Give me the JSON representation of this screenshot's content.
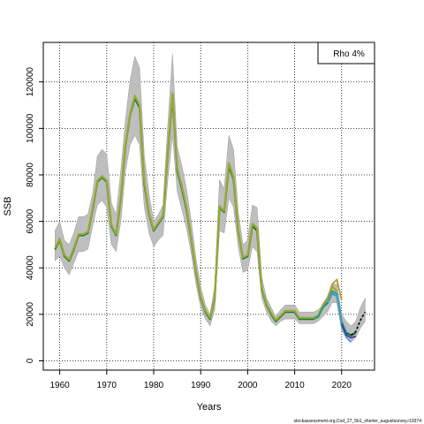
{
  "chart_data": {
    "type": "line",
    "xlabel": "Years",
    "ylabel": "SSB",
    "xlim": [
      1956.5,
      2027
    ],
    "ylim": [
      -4000,
      137000
    ],
    "x_ticks": [
      1960,
      1970,
      1980,
      1990,
      2000,
      2010,
      2020
    ],
    "y_ticks": [
      0,
      20000,
      40000,
      60000,
      80000,
      100000,
      120000
    ],
    "grid": "dotted",
    "legend": {
      "placement": "top-right",
      "text": "Rho 4%"
    },
    "footnote": "stockassessment.org,Cod_27_5b1_shorter_augustsurvey,r19374",
    "colors": {
      "band": "#bebebe",
      "base": "#0b7a3a",
      "retro1": "#9aa832",
      "retro2": "#b89a2e",
      "retro3": "#20a08a",
      "retro4": "#4aa0d0",
      "retro5": "#3a3aa0",
      "forecast": "#111111"
    },
    "confidence_band": {
      "x": [
        1959,
        1960,
        1961,
        1962,
        1963,
        1964,
        1965,
        1966,
        1967,
        1968,
        1969,
        1970,
        1971,
        1972,
        1973,
        1974,
        1975,
        1976,
        1977,
        1978,
        1979,
        1980,
        1981,
        1982,
        1983,
        1984,
        1985,
        1986,
        1987,
        1988,
        1989,
        1990,
        1991,
        1992,
        1993,
        1994,
        1995,
        1996,
        1997,
        1998,
        1999,
        2000,
        2001,
        2002,
        2003,
        2004,
        2005,
        2006,
        2007,
        2008,
        2009,
        2010,
        2011,
        2012,
        2013,
        2014,
        2015,
        2016,
        2017,
        2018,
        2019,
        2020,
        2021,
        2022,
        2023,
        2024,
        2025
      ],
      "upper": [
        56000,
        60000,
        52000,
        50000,
        55000,
        62000,
        62000,
        63000,
        72000,
        88000,
        91000,
        89000,
        68000,
        63000,
        82000,
        104000,
        121000,
        131000,
        126000,
        88000,
        72000,
        60000,
        63000,
        67000,
        102000,
        132000,
        92000,
        84000,
        74000,
        60000,
        44000,
        32000,
        24000,
        20000,
        32000,
        78000,
        74000,
        97000,
        91000,
        64000,
        50000,
        52000,
        67000,
        66000,
        36000,
        27000,
        23000,
        19000,
        22000,
        24000,
        24000,
        24000,
        21000,
        21000,
        21000,
        21000,
        22000,
        24000,
        27000,
        33000,
        33000,
        20000,
        17000,
        15000,
        17000,
        23000,
        27000
      ],
      "lower": [
        43000,
        45000,
        40000,
        37000,
        42000,
        47000,
        47000,
        48000,
        58000,
        67000,
        69000,
        66000,
        50000,
        47000,
        60000,
        82000,
        93000,
        97000,
        93000,
        66000,
        55000,
        49000,
        52000,
        54000,
        78000,
        97000,
        73000,
        65000,
        57000,
        46000,
        33000,
        23000,
        18000,
        15000,
        22000,
        56000,
        55000,
        70000,
        66000,
        49000,
        38000,
        39000,
        49000,
        47000,
        27000,
        21000,
        17000,
        15000,
        17000,
        18000,
        18000,
        18000,
        16000,
        16000,
        16000,
        16000,
        17000,
        19000,
        21000,
        25000,
        25000,
        13000,
        10000,
        8000,
        10000,
        14000,
        17000
      ]
    },
    "series": [
      {
        "color": "#0b7a3a",
        "x": [
          1959,
          1960,
          1961,
          1962,
          1963,
          1964,
          1965,
          1966,
          1967,
          1968,
          1969,
          1970,
          1971,
          1972,
          1973,
          1974,
          1975,
          1976,
          1977,
          1978,
          1979,
          1980,
          1981,
          1982,
          1983,
          1984,
          1985,
          1986,
          1987,
          1988,
          1989,
          1990,
          1991,
          1992,
          1993,
          1994,
          1995,
          1996,
          1997,
          1998,
          1999,
          2000,
          2001,
          2002,
          2003,
          2004,
          2005,
          2006,
          2007,
          2008,
          2009,
          2010,
          2011,
          2012,
          2013,
          2014,
          2015,
          2016,
          2017,
          2018,
          2019,
          2020,
          2021,
          2022,
          2023
        ],
        "y": [
          48000,
          52000,
          45000,
          43000,
          48000,
          54000,
          54000,
          55000,
          65000,
          77000,
          79000,
          77000,
          58000,
          54000,
          70000,
          93000,
          106000,
          113000,
          109000,
          76000,
          63000,
          56000,
          59000,
          62000,
          90000,
          114000,
          82000,
          74000,
          65000,
          52000,
          38000,
          27000,
          21000,
          18000,
          27000,
          66000,
          64000,
          84000,
          78000,
          56000,
          44000,
          45000,
          58000,
          56000,
          31000,
          24000,
          20000,
          17000,
          19000,
          21000,
          21000,
          21000,
          18000,
          18000,
          18000,
          18000,
          19000,
          23000,
          25000,
          29000,
          28000,
          16000,
          12000,
          11000,
          12000
        ]
      },
      {
        "color": "#9aa832",
        "x": [
          1959,
          1960,
          1961,
          1962,
          1963,
          1964,
          1965,
          1966,
          1967,
          1968,
          1969,
          1970,
          1971,
          1972,
          1973,
          1974,
          1975,
          1976,
          1977,
          1978,
          1979,
          1980,
          1981,
          1982,
          1983,
          1984,
          1985,
          1986,
          1987,
          1988,
          1989,
          1990,
          1991,
          1992,
          1993,
          1994,
          1995,
          1996,
          1997,
          1998,
          1999,
          2000,
          2001,
          2002,
          2003,
          2004,
          2005,
          2006,
          2007,
          2008,
          2009,
          2010,
          2011,
          2012,
          2013,
          2014,
          2015,
          2016,
          2017,
          2018,
          2019
        ],
        "y": [
          48500,
          52500,
          45500,
          43500,
          48500,
          54500,
          54500,
          55500,
          65500,
          77500,
          79500,
          77500,
          58500,
          54500,
          70500,
          93500,
          106500,
          114000,
          110000,
          77000,
          63500,
          56500,
          59500,
          62500,
          91000,
          115000,
          83000,
          75000,
          66000,
          52500,
          38500,
          27500,
          21500,
          18500,
          27500,
          66500,
          64500,
          85000,
          79000,
          56500,
          44500,
          45500,
          59000,
          57000,
          31500,
          24500,
          20500,
          17500,
          19500,
          21500,
          21500,
          21500,
          18500,
          18500,
          18500,
          18500,
          19500,
          24000,
          27000,
          32000,
          30000
        ]
      },
      {
        "color": "#b89a2e",
        "x": [
          2014,
          2015,
          2016,
          2017,
          2018,
          2019,
          2020
        ],
        "y": [
          18500,
          19500,
          24000,
          27000,
          33000,
          35000,
          26000
        ]
      },
      {
        "color": "#20a08a",
        "x": [
          2014,
          2015,
          2016,
          2017,
          2018,
          2019,
          2020,
          2021
        ],
        "y": [
          18000,
          19000,
          23000,
          25500,
          30000,
          29000,
          17000,
          12000
        ]
      },
      {
        "color": "#4aa0d0",
        "x": [
          2017,
          2018,
          2019,
          2020,
          2021,
          2022
        ],
        "y": [
          25000,
          29000,
          28000,
          15000,
          10000,
          8000
        ]
      },
      {
        "color": "#3a3aa0",
        "x": [
          2020,
          2021,
          2022,
          2023
        ],
        "y": [
          16000,
          11000,
          10000,
          10500
        ]
      },
      {
        "color": "#111111",
        "dashed": true,
        "x": [
          2022,
          2023,
          2024,
          2025
        ],
        "y": [
          11000,
          12500,
          17500,
          21000
        ]
      }
    ]
  }
}
